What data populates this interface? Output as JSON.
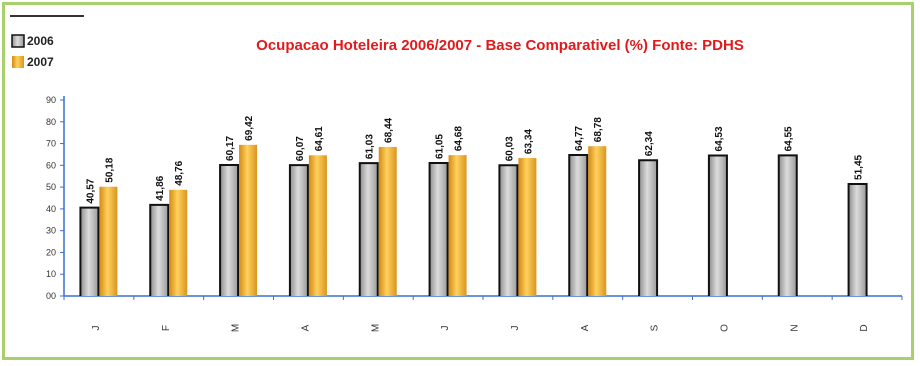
{
  "chart_data": {
    "type": "bar",
    "title": "Ocupacao Hoteleira 2006/2007 - Base Comparativel (%) Fonte: PDHS",
    "categories": [
      "J",
      "F",
      "M",
      "A",
      "M",
      "J",
      "J",
      "A",
      "S",
      "O",
      "N",
      "D"
    ],
    "series": [
      {
        "name": "2006",
        "values": [
          40.57,
          41.86,
          60.17,
          60.07,
          61.03,
          61.05,
          60.03,
          64.77,
          62.34,
          64.53,
          64.55,
          51.45
        ],
        "labels": [
          "40,57",
          "41,86",
          "60,17",
          "60,07",
          "61,03",
          "61,05",
          "60,03",
          "64,77",
          "62,34",
          "64,53",
          "64,55",
          "51,45"
        ]
      },
      {
        "name": "2007",
        "values": [
          50.18,
          48.76,
          69.42,
          64.61,
          68.44,
          64.68,
          63.34,
          68.78,
          null,
          null,
          null,
          null
        ],
        "labels": [
          "50,18",
          "48,76",
          "69,42",
          "64,61",
          "68,44",
          "64,68",
          "63,34",
          "68,78",
          "",
          "",
          "",
          ""
        ]
      }
    ],
    "ylim": [
      0,
      90
    ],
    "yticks": [
      "00",
      "10",
      "20",
      "30",
      "40",
      "50",
      "60",
      "70",
      "80",
      "90"
    ],
    "grid": false,
    "legend_position": "top-left",
    "colors": {
      "series_2006": "#b8b8b8",
      "series_2007": "#f0b23a",
      "axis": "#3b6fd1",
      "title": "#e01b1b",
      "frame": "#a9d16b"
    }
  }
}
